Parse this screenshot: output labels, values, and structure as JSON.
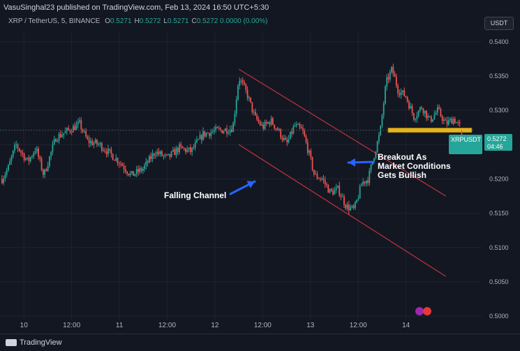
{
  "header": {
    "publisher_line": "VasuSinghal23 published on TradingView.com, Feb 13, 2024 16:50 UTC+5:30",
    "symbol": "XRP / TetherUS, 5, BINANCE",
    "ohlc": [
      {
        "key": "O",
        "value": "0.5271"
      },
      {
        "key": "H",
        "value": "0.5272"
      },
      {
        "key": "L",
        "value": "0.5271"
      },
      {
        "key": "C",
        "value": "0.5272"
      },
      {
        "key": "",
        "value": "0.0000 (0.00%)"
      }
    ],
    "currency_button": "USDT"
  },
  "last_price": {
    "symbol": "XRPUSDT",
    "price": "0.5272",
    "countdown": "04:46"
  },
  "annotations": {
    "falling_channel": "Falling Channel",
    "breakout": [
      "Breakout As",
      "Market Conditions",
      "Gets Bullish"
    ]
  },
  "footer": {
    "brand": "TradingView"
  },
  "colors": {
    "up": "#26a69a",
    "down": "#ef5350",
    "channel": "#c2333d",
    "support": "#e6b422",
    "arrow": "#2962ff",
    "background": "#131722"
  },
  "chart_data": {
    "type": "candlestick",
    "x_tick_labels": [
      "10",
      "12:00",
      "11",
      "12:00",
      "12",
      "12:00",
      "13",
      "12:00",
      "14"
    ],
    "y_tick_labels": [
      "0.5400",
      "0.5350",
      "0.5300",
      "0.5250",
      "0.5200",
      "0.5150",
      "0.5100",
      "0.5050",
      "0.5000"
    ],
    "ylim": [
      0.4995,
      0.5415
    ],
    "price_path": [
      [
        0,
        0.5195
      ],
      [
        0.02,
        0.5215
      ],
      [
        0.04,
        0.525
      ],
      [
        0.07,
        0.5225
      ],
      [
        0.09,
        0.5245
      ],
      [
        0.11,
        0.5205
      ],
      [
        0.14,
        0.526
      ],
      [
        0.17,
        0.527
      ],
      [
        0.2,
        0.528
      ],
      [
        0.22,
        0.5255
      ],
      [
        0.25,
        0.525
      ],
      [
        0.28,
        0.5235
      ],
      [
        0.3,
        0.5225
      ],
      [
        0.33,
        0.5205
      ],
      [
        0.36,
        0.5215
      ],
      [
        0.39,
        0.524
      ],
      [
        0.42,
        0.523
      ],
      [
        0.45,
        0.5245
      ],
      [
        0.48,
        0.524
      ],
      [
        0.51,
        0.5265
      ],
      [
        0.54,
        0.527
      ],
      [
        0.57,
        0.5272
      ],
      [
        0.585,
        0.5275
      ],
      [
        0.6,
        0.5348
      ],
      [
        0.62,
        0.5325
      ],
      [
        0.64,
        0.529
      ],
      [
        0.66,
        0.5275
      ],
      [
        0.68,
        0.5285
      ],
      [
        0.7,
        0.527
      ],
      [
        0.72,
        0.525
      ],
      [
        0.74,
        0.5278
      ],
      [
        0.76,
        0.527
      ],
      [
        0.775,
        0.524
      ],
      [
        0.79,
        0.5205
      ],
      [
        0.81,
        0.52
      ],
      [
        0.83,
        0.518
      ],
      [
        0.85,
        0.5185
      ],
      [
        0.87,
        0.516
      ],
      [
        0.89,
        0.5155
      ],
      [
        0.91,
        0.5195
      ],
      [
        0.925,
        0.52
      ],
      [
        0.94,
        0.5235
      ],
      [
        0.955,
        0.5268
      ],
      [
        0.97,
        0.534
      ],
      [
        0.985,
        0.536
      ],
      [
        1.0,
        0.533
      ],
      [
        1.02,
        0.532
      ],
      [
        1.04,
        0.529
      ],
      [
        1.06,
        0.5305
      ],
      [
        1.08,
        0.5285
      ],
      [
        1.1,
        0.53
      ],
      [
        1.12,
        0.528
      ],
      [
        1.14,
        0.5288
      ],
      [
        1.16,
        0.5272
      ]
    ],
    "channel_upper": [
      [
        0.6,
        0.536
      ],
      [
        1.12,
        0.5175
      ]
    ],
    "channel_lower": [
      [
        0.6,
        0.525
      ],
      [
        1.12,
        0.5058
      ]
    ],
    "support_level": 0.5271,
    "last_close": 0.5272
  }
}
